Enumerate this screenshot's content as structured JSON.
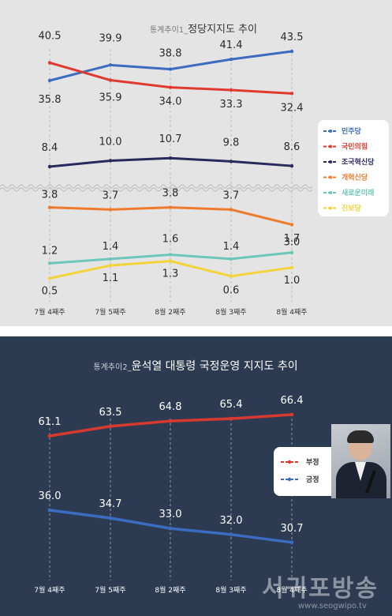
{
  "chart_data": [
    {
      "type": "line",
      "title": "통계추이1_정당지지도 추이",
      "title_prefix": "통계추이1_",
      "title_main": "정당지지도 추이",
      "categories": [
        "7월 4째주",
        "7월 5째주",
        "8월 2째주",
        "8월 3째주",
        "8월 4째주"
      ],
      "axis_break": true,
      "series": [
        {
          "name": "민주당",
          "color": "#3b6cc0",
          "values": [
            35.8,
            39.9,
            38.8,
            41.4,
            43.5
          ]
        },
        {
          "name": "국민의힘",
          "color": "#e03a2f",
          "values": [
            40.5,
            35.9,
            34.0,
            33.3,
            32.4
          ]
        },
        {
          "name": "조국혁신당",
          "color": "#272a5a",
          "values": [
            8.4,
            10.0,
            10.7,
            9.8,
            8.6
          ]
        },
        {
          "name": "개혁신당",
          "color": "#ee7b2d",
          "values": [
            3.8,
            3.7,
            3.8,
            3.7,
            3.0
          ]
        },
        {
          "name": "새로운미래",
          "color": "#6ec6b8",
          "values": [
            1.2,
            1.4,
            1.6,
            1.4,
            1.7
          ]
        },
        {
          "name": "진보당",
          "color": "#f2d43a",
          "values": [
            0.5,
            1.1,
            1.3,
            0.6,
            1.0
          ]
        }
      ],
      "labels": [
        [
          "35.8",
          "39.9",
          "38.8",
          "41.4",
          "43.5"
        ],
        [
          "40.5",
          "35.9",
          "34.0",
          "33.3",
          "32.4"
        ],
        [
          "8.4",
          "10.0",
          "10.7",
          "9.8",
          "8.6"
        ],
        [
          "3.8",
          "3.7",
          "3.8",
          "3.7",
          "3.0"
        ],
        [
          "1.2",
          "1.4",
          "1.6",
          "1.4",
          "1.7"
        ],
        [
          "0.5",
          "1.1",
          "1.3",
          "0.6",
          "1.0"
        ]
      ],
      "legend_position": "right",
      "grid": "dashed vertical"
    },
    {
      "type": "line",
      "title": "통계추이2_윤석열 대통령 국정운영 지지도 추이",
      "title_prefix": "통계추이2_",
      "title_main": "윤석열 대통령 국정운영 지지도 추이",
      "categories": [
        "7월 4째주",
        "7월 5째주",
        "8월 2째주",
        "8월 3째주",
        "8월 4째주"
      ],
      "series": [
        {
          "name": "부정",
          "color": "#d63a2f",
          "values": [
            61.1,
            63.5,
            64.8,
            65.4,
            66.4
          ]
        },
        {
          "name": "긍정",
          "color": "#3b6cc0",
          "values": [
            36.0,
            34.7,
            33.0,
            32.0,
            30.7
          ]
        }
      ],
      "labels": [
        [
          "61.1",
          "63.5",
          "64.8",
          "65.4",
          "66.4"
        ],
        [
          "36.0",
          "34.7",
          "33.0",
          "32.0",
          "30.7"
        ]
      ],
      "legend_position": "right",
      "grid": "dashed vertical"
    }
  ],
  "watermark": {
    "name": "서귀포방송",
    "url": "www.seogwipo.tv"
  },
  "colors": {
    "panel1_bg": "#e4e4e4",
    "panel2_bg": "#2d3b52"
  }
}
